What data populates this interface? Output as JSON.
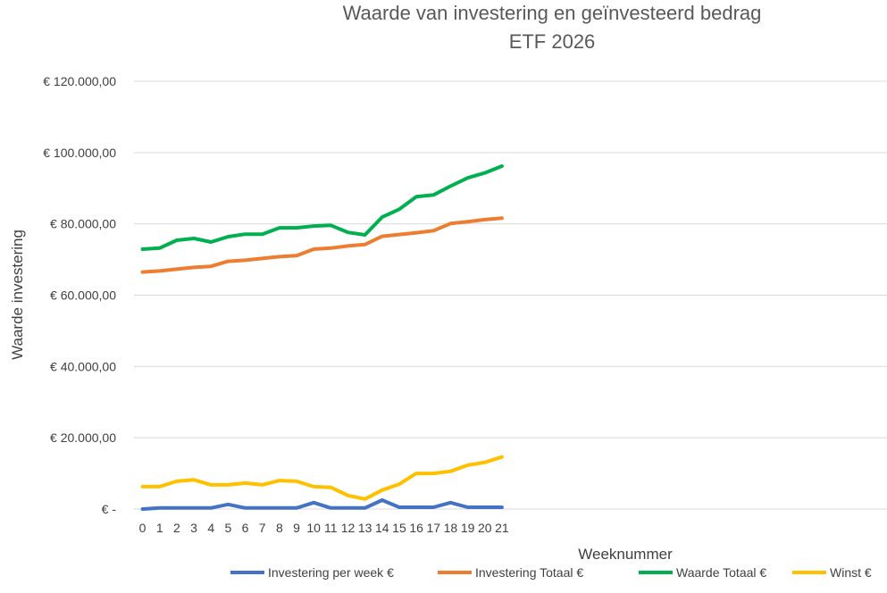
{
  "chart_data": {
    "type": "line",
    "title": "Waarde van investering en geïnvesteerd bedrag",
    "subtitle": "ETF 2026",
    "xlabel": "Weeknummer",
    "ylabel": "Waarde investering",
    "x": [
      0,
      1,
      2,
      3,
      4,
      5,
      6,
      7,
      8,
      9,
      10,
      11,
      12,
      13,
      14,
      15,
      16,
      17,
      18,
      19,
      20,
      21
    ],
    "x_tick_labels": [
      "0",
      "1",
      "2",
      "3",
      "4",
      "5",
      "6",
      "7",
      "8",
      "9",
      "10",
      "11",
      "12",
      "13",
      "14",
      "15",
      "16",
      "17",
      "18",
      "19",
      "20",
      "21"
    ],
    "x_slots": 44,
    "ylim": [
      0,
      120000
    ],
    "y_ticks": [
      0,
      20000,
      40000,
      60000,
      80000,
      100000,
      120000
    ],
    "y_tick_labels": [
      "€ -",
      "€ 20.000,00",
      "€ 40.000,00",
      "€ 60.000,00",
      "€ 80.000,00",
      "€ 100.000,00",
      "€ 120.000,00"
    ],
    "grid": true,
    "legend_position": "bottom-right",
    "series": [
      {
        "name": "Investering per week €",
        "color": "#4472c4",
        "values": [
          0,
          300,
          300,
          300,
          300,
          1300,
          300,
          300,
          300,
          300,
          1800,
          300,
          300,
          300,
          2500,
          500,
          500,
          500,
          1800,
          500,
          500,
          500
        ]
      },
      {
        "name": "Investering Totaal €",
        "color": "#ed7d31",
        "values": [
          66500,
          66800,
          67300,
          67800,
          68100,
          69500,
          69800,
          70300,
          70800,
          71100,
          72900,
          73200,
          73800,
          74200,
          76500,
          77000,
          77500,
          78100,
          80100,
          80600,
          81200,
          81600
        ]
      },
      {
        "name": "Waarde Totaal €",
        "color": "#00b050",
        "values": [
          72900,
          73200,
          75400,
          75900,
          74900,
          76400,
          77100,
          77100,
          78900,
          78900,
          79400,
          79600,
          77600,
          76900,
          81900,
          84100,
          87600,
          88100,
          90600,
          92900,
          94300,
          96200
        ]
      },
      {
        "name": "Winst €",
        "color": "#ffc000",
        "values": [
          6300,
          6300,
          7800,
          8200,
          6800,
          6800,
          7300,
          6800,
          8000,
          7800,
          6300,
          6100,
          3800,
          2800,
          5300,
          7000,
          10000,
          10000,
          10600,
          12300,
          13100,
          14600
        ]
      }
    ]
  }
}
